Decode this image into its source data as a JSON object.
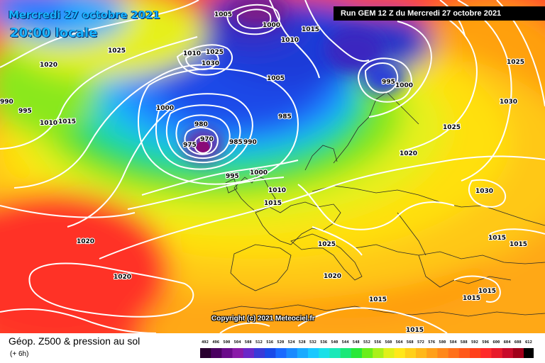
{
  "header": {
    "date_line": "Mercredi 27 octobre 2021",
    "time_line": "20:00 locale",
    "run_info": "Run GEM 12 Z du Mercredi 27 octobre 2021"
  },
  "map": {
    "copyright": "Copyright (c) 2021 Meteociel.fr",
    "pressure_labels": [
      "1005",
      "1000",
      "1015",
      "1010",
      "1025",
      "1030",
      "1010",
      "1005",
      "995",
      "1000",
      "1020",
      "1025",
      "990",
      "995",
      "1010",
      "1015",
      "1000",
      "985",
      "980",
      "970",
      "975",
      "985",
      "990",
      "995",
      "1000",
      "1025",
      "1030",
      "1020",
      "1025",
      "1010",
      "1015",
      "1030",
      "1025",
      "1015",
      "1015",
      "1020",
      "1020",
      "1020",
      "1015",
      "1015",
      "1015",
      "1015"
    ],
    "colors": {
      "highs": "#ff3b2a",
      "ridge": "#ffb000",
      "mid": "#ffe800",
      "trough": "#1a3ad8",
      "low_center": "#8a0a78",
      "isobar": "#ffffff"
    }
  },
  "legend": {
    "title": "Géop. Z500 & pression au sol",
    "subtitle": "(+ 6h)",
    "scale_values": [
      "492",
      "496",
      "500",
      "504",
      "508",
      "512",
      "516",
      "520",
      "524",
      "528",
      "532",
      "536",
      "540",
      "544",
      "548",
      "552",
      "556",
      "560",
      "564",
      "568",
      "572",
      "576",
      "580",
      "584",
      "588",
      "592",
      "596",
      "600",
      "604",
      "608",
      "612"
    ],
    "scale_colors": [
      "#2a0030",
      "#4a0060",
      "#6a0a8a",
      "#8a1aa8",
      "#6a28c8",
      "#3a3ad8",
      "#1a4ae8",
      "#1a6aff",
      "#1a8aff",
      "#1aaaff",
      "#1ac8ff",
      "#1ae0e8",
      "#1ae8b8",
      "#1ae878",
      "#28e838",
      "#6aee1a",
      "#aaf01a",
      "#e0f01a",
      "#ffe81a",
      "#ffd01a",
      "#ffb81a",
      "#ffa01a",
      "#ff881a",
      "#ff701a",
      "#ff581a",
      "#ff401a",
      "#ff2a2a",
      "#e81a2a",
      "#c80a2a",
      "#a0001a",
      "#000000"
    ]
  }
}
